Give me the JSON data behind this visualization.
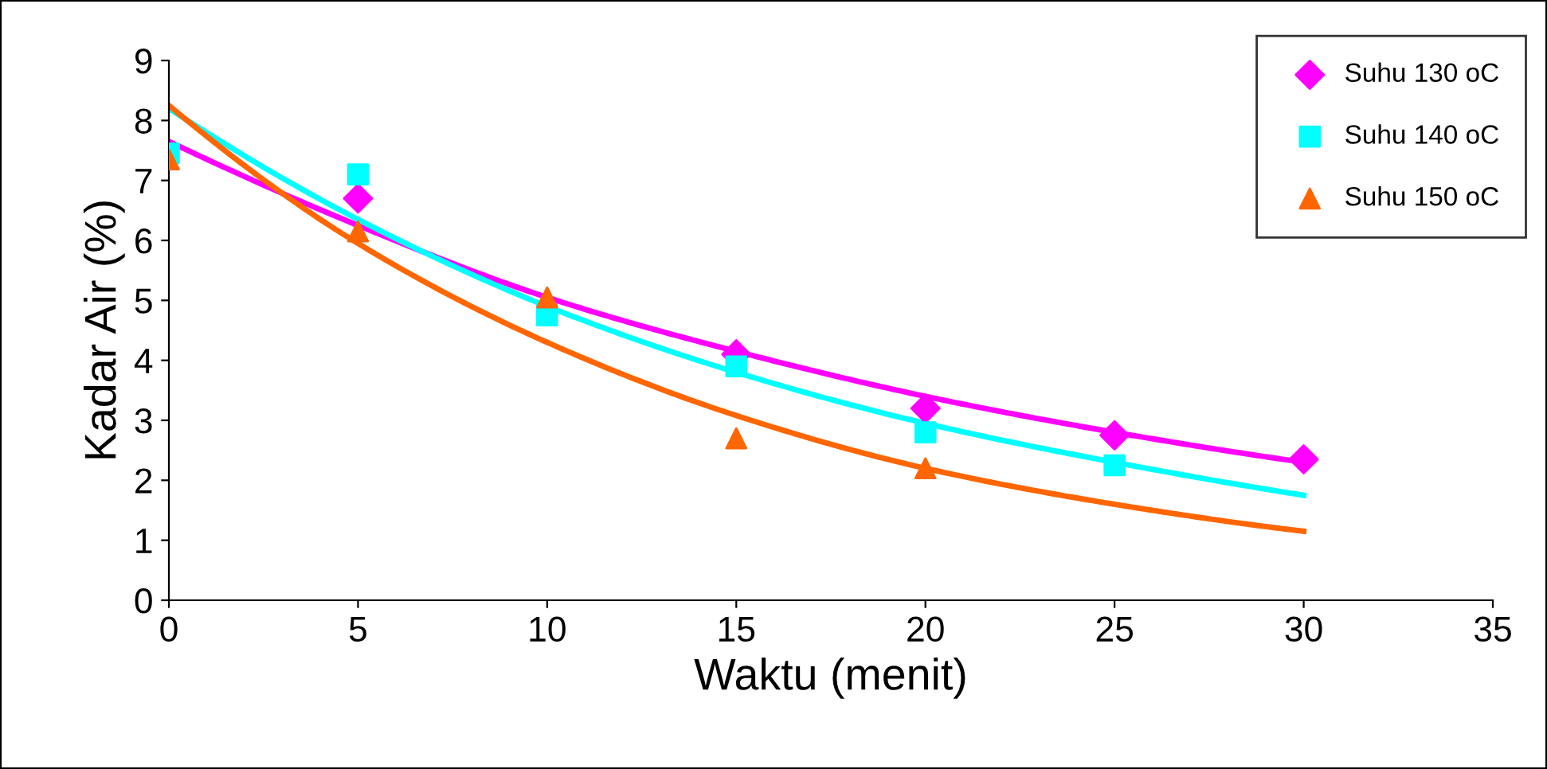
{
  "chart_data": {
    "type": "scatter",
    "xlabel": "Waktu (menit)",
    "ylabel": "Kadar Air (%)",
    "xlim": [
      0,
      35
    ],
    "ylim": [
      0,
      9
    ],
    "xticks": [
      0,
      5,
      10,
      15,
      20,
      25,
      30,
      35
    ],
    "yticks": [
      0,
      1,
      2,
      3,
      4,
      5,
      6,
      7,
      8,
      9
    ],
    "grid": false,
    "legend": "top right",
    "series": [
      {
        "type": "line",
        "color": "#ff00ff",
        "x": [
          0,
          5,
          10,
          15,
          20,
          25,
          30
        ],
        "values": [
          7.65,
          6.25,
          5.05,
          4.15,
          3.4,
          2.8,
          2.3
        ]
      },
      {
        "type": "line",
        "color": "#00ffff",
        "x": [
          0,
          5,
          10,
          15,
          20,
          25,
          30
        ],
        "values": [
          8.2,
          6.35,
          4.9,
          3.8,
          2.95,
          2.3,
          1.75
        ]
      },
      {
        "type": "line",
        "color": "#ff6600",
        "x": [
          0,
          5,
          10,
          15,
          20,
          25,
          30
        ],
        "values": [
          8.25,
          5.95,
          4.3,
          3.08,
          2.2,
          1.6,
          1.15
        ]
      },
      {
        "name": "Suhu 130 oC",
        "color": "#ff00ff",
        "marker": "diamond",
        "x": [
          5,
          15,
          20,
          25,
          30
        ],
        "values": [
          6.7,
          4.1,
          3.2,
          2.75,
          2.35
        ]
      },
      {
        "name": "Suhu 140 oC",
        "color": "#00ffff",
        "marker": "square",
        "x": [
          0,
          5,
          10,
          15,
          20,
          25
        ],
        "values": [
          7.45,
          7.1,
          4.75,
          3.9,
          2.8,
          2.25
        ]
      },
      {
        "name": "Suhu 150 oC",
        "color": "#ff6600",
        "marker": "triangle",
        "x": [
          0,
          5,
          10,
          15,
          20
        ],
        "values": [
          7.35,
          6.15,
          5.05,
          2.7,
          2.2
        ]
      }
    ]
  }
}
